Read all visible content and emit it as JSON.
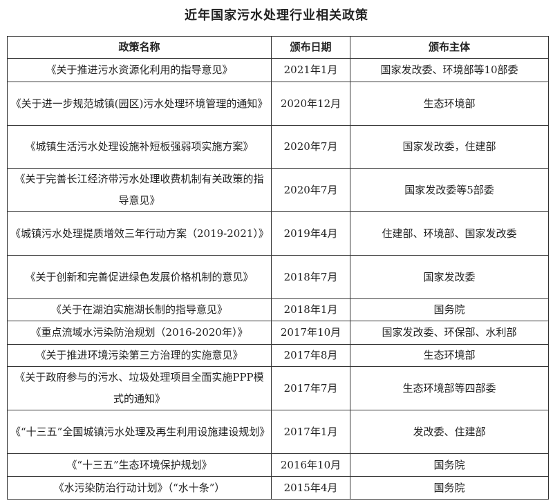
{
  "title": "近年国家污水处理行业相关政策",
  "table": {
    "headers": [
      "政策名称",
      "颁布日期",
      "颁布主体"
    ],
    "rows": [
      {
        "name": "《关于推进污水资源化利用的指导意见》",
        "date": "2021年1月",
        "issuer": "国家发改委、环境部等10部委"
      },
      {
        "name": "《关于进一步规范城镇(园区)污水处理环境管理的通知》",
        "date": "2020年12月",
        "issuer": "生态环境部"
      },
      {
        "name": "《城镇生活污水处理设施补短板强弱项实施方案》",
        "date": "2020年7月",
        "issuer": "国家发改委，住建部"
      },
      {
        "name": "《关于完善长江经济带污水处理收费机制有关政策的指导意见》",
        "date": "2020年7月",
        "issuer": "国家发改委等5部委"
      },
      {
        "name": "《城镇污水处理提质增效三年行动方案（2019-2021）》",
        "date": "2019年4月",
        "issuer": "住建部、环境部、国家发改委"
      },
      {
        "name": "《关于创新和完善促进绿色发展价格机制的意见》",
        "date": "2018年7月",
        "issuer": "国家发改委"
      },
      {
        "name": "《关于在湖泊实施湖长制的指导意见》",
        "date": "2018年1月",
        "issuer": "国务院"
      },
      {
        "name": "《重点流域水污染防治规划（2016-2020年）》",
        "date": "2017年10月",
        "issuer": "国家发改委、环保部、水利部"
      },
      {
        "name": "《关于推进环境污染第三方治理的实施意见》",
        "date": "2017年8月",
        "issuer": "生态环境部"
      },
      {
        "name": "《关于政府参与的污水、垃圾处理项目全面实施PPP模式的通知》",
        "date": "2017年7月",
        "issuer": "生态环境部等四部委"
      },
      {
        "name": "《“十三五”全国城镇污水处理及再生利用设施建设规划》",
        "date": "2017年1月",
        "issuer": "发改委、住建部"
      },
      {
        "name": "《“十三五”生态环境保护规划》",
        "date": "2016年10月",
        "issuer": "国务院"
      },
      {
        "name": "《水污染防治行动计划》（“水十条”）",
        "date": "2015年4月",
        "issuer": "国务院"
      }
    ]
  }
}
